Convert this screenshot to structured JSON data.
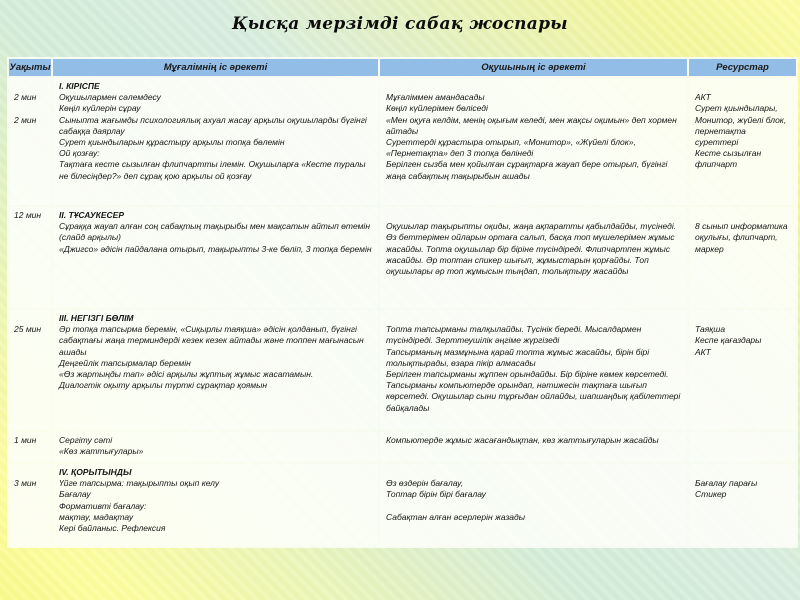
{
  "title": "Қысқа мерзімді сабақ жоспары",
  "colors": {
    "header_bg": "#92bde6",
    "background_yellow": "#fbfb8f",
    "background_green": "#d5ecd9",
    "gridline": "#fbfdf6",
    "text": "#141414"
  },
  "table": {
    "headers": {
      "time": "Уақыты",
      "teacher": "Мұғалімнің іс әрекеті",
      "student": "Оқушының іс әрекеті",
      "resources": "Ресурстар"
    },
    "rows": [
      {
        "time": "\n2 мин\n\n2 мин",
        "teacher": "I. КІРІСПЕ\nОқушылармен сәлемдесу\n Көңіл күйлерін сұрау\nСыныпта жағымды психологиялық ахуал жасау арқылы  оқушыларды бүгінгі сабаққа даярлау\nСурет қиындыларын құрастыру арқылы топқа бөлемін\nОй қозғау:\nТақтаға кесте сызылған флипчартты ілемін. Оқушыларға «Кесте туралы не білесіңдер?»  деп сұрақ қою арқылы ой қозғау",
        "student": "\nМұғаліммен амандасады\nКөңіл күйлерімен бөліседі\n«Мен оқуға келдім, менің оқығым келеді, мен жақсы оқимын» деп хормен айтады\nСуреттерді құрастыра отырып, «Монитор»,  «Жүйелі блок», «Пернетақта» деп 3 топқа бөлінеді\nБерілген сызба мен қойылған сұрақтарға жауап бере отырып, бүгінгі жаңа сабақтың  тақырыбын ашады",
        "resources": "\nАКТ\nСурет қиындылары,\nМонитор, жүйелі блок, пернетақта суреттері\nКесте сызылған флипчарт"
      },
      {
        "time": "12 мин",
        "teacher": "II. ТҰСАУКЕСЕР\nСұраққа жауап алған соң  сабақтың тақырыбы мен мақсатын айтып өтемін (слайд арқылы)\n«Джигсо» әдісін пайдалана отырып, тақырыпты 3-ке бөліп, 3 топқа беремін",
        "student": "\nОқушылар тақырыпты оқиды, жаңа ақпаратты қабылдайды, түсінеді.  Өз беттерімен ойларын ортаға салып, басқа топ мүшелерімен жұмыс жасайды. Топта оқушылар бір біріне түсіндіреді. Флипчартпен жұмыс жасайды. Әр топтан спикер шығып, жұмыстарын қорғайды. Топ оқушылары әр топ жұмысын тыңдап, толықтыру жасайды",
        "resources": "\n8 сынып информатика оқулығы,  флипчарт, маркер"
      },
      {
        "time": "\n25 мин",
        "teacher": "III. НЕГІЗГІ БӨЛІМ\nӘр топқа тапсырма беремін, «Сиқырлы таяқша»  әдісін қолданып, бүгінгі сабақтағы жаңа терминдерді кезек кезек айтады және топпен мағынасын ашады\nДеңгейлік тапсырмалар беремін\n«Өз жартыңды тап» әдісі арқылы жұптық жұмыс жасатамын.\nДиалогтік оқыту арқылы түрткі сұрақтар қоямын",
        "student": "\nТопта тапсырманы талқылайды. Түсінік береді. Мысалдармен түсіндіреді. Зерттеушілік әңгіме жүргізеді\nТапсырманың мазмұнына қарай топта жұмыс жасайды, бірін бірі толықтырады, өзара пікір алмасады\nБерілген тапсырманы жұппен орындайды. Бір біріне көмек көрсетеді. Тапсырманы компьютерде орындап,  нәтижесін тақтаға шығып көрсетеді. Оқушылар сыни тұрғыдан ойлайды, шапшаңдық қабілеттері байқалады",
        "resources": "\nТаяқша\nКеспе қағаздары\nАКТ"
      },
      {
        "time": "1 мин",
        "teacher": "Сергіту сәті\n«Көз жаттығулары»",
        "student": "Компьютерде жұмыс жасағандықтан, көз жаттығуларын жасайды",
        "resources": ""
      },
      {
        "time": "\n3 мин",
        "teacher": "IV. ҚОРЫТЫНДЫ\nҮйге тапсырма: тақырыпты оқып келу\n Бағалау\nФормативті бағалау:\nмақтау, мадақтау\nКері байланыс. Рефлексия",
        "student": "\nӨз  өздерін бағалау,\nТоптар бірін бірі бағалау\n\nСабақтан алған әсерлерін жазады",
        "resources": "\nБағалау парағы\nСтикер"
      }
    ]
  }
}
